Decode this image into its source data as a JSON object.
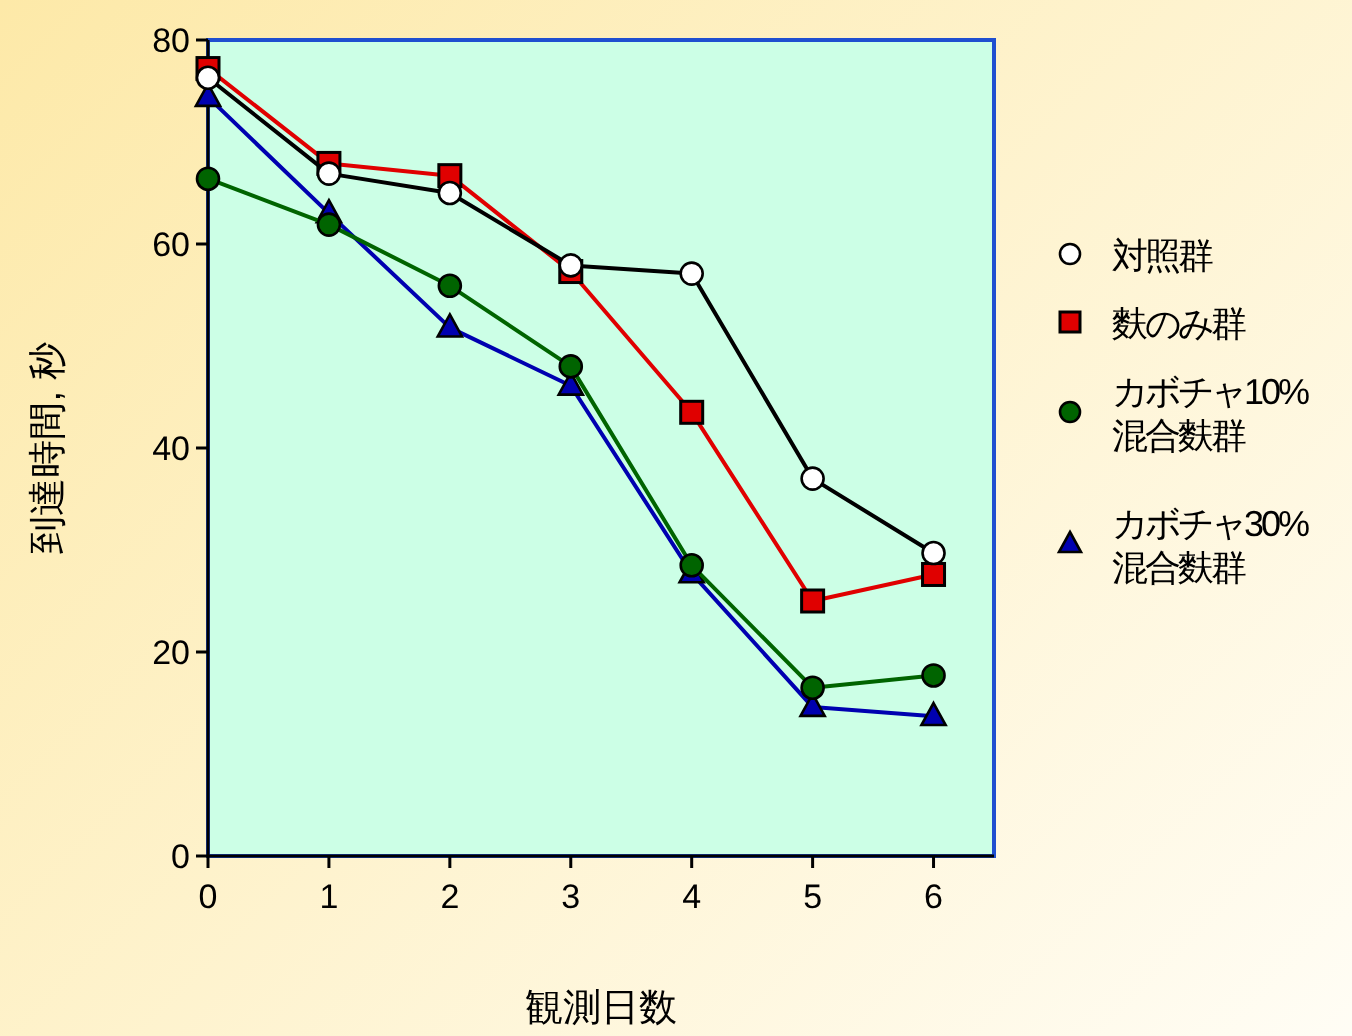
{
  "chart_data": {
    "type": "line",
    "xlabel": "観測日数",
    "ylabel": "到達時間, 秒",
    "x": [
      0,
      1,
      2,
      3,
      4,
      5,
      6
    ],
    "xlim": [
      0,
      6.5
    ],
    "xticks": [
      0,
      1,
      2,
      3,
      4,
      5,
      6
    ],
    "ylim": [
      0,
      80
    ],
    "yticks": [
      0,
      20,
      40,
      60,
      80
    ],
    "grid": false,
    "legend": "right",
    "line_style": "solid",
    "series": [
      {
        "name": "対照群",
        "color": "#ffffff",
        "marker": "circle",
        "values": [
          76.3,
          66.9,
          65.0,
          57.9,
          57.1,
          37.0,
          29.7
        ]
      },
      {
        "name": "麩のみ群",
        "color": "#e00000",
        "marker": "square",
        "values": [
          77.2,
          67.9,
          66.7,
          57.3,
          43.5,
          25.0,
          27.6
        ]
      },
      {
        "name": "カボチャ10%\n混合麩群",
        "color": "#006400",
        "marker": "circle",
        "values": [
          66.4,
          61.9,
          55.9,
          48.0,
          28.5,
          16.5,
          17.7
        ]
      },
      {
        "name": "カボチャ30%\n混合麩群",
        "color": "#0000b0",
        "marker": "triangle",
        "values": [
          74.4,
          63.0,
          51.8,
          46.1,
          27.7,
          14.6,
          13.7
        ]
      }
    ]
  }
}
